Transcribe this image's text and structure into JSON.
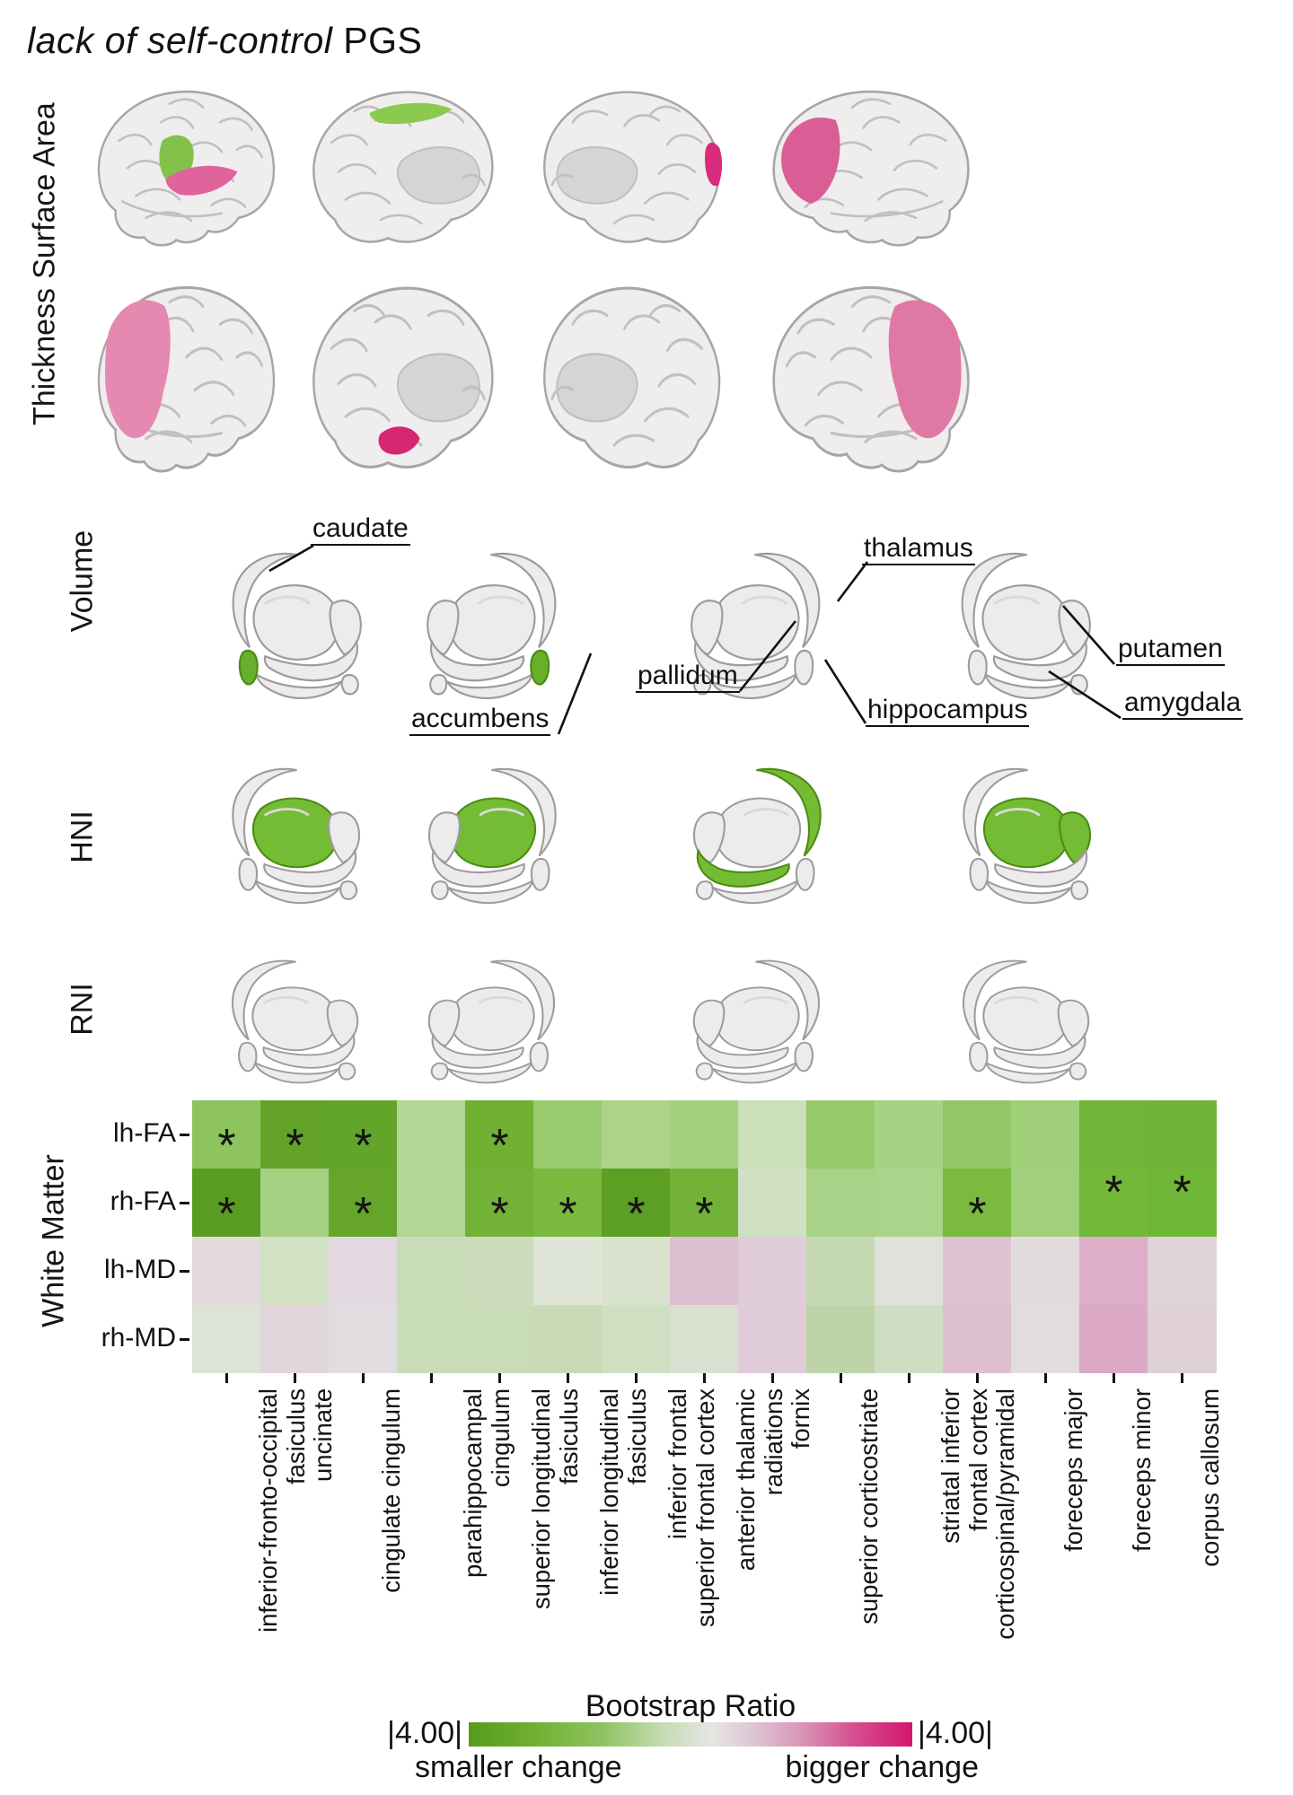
{
  "title": {
    "italic": "lack of self-control",
    "normal": " PGS"
  },
  "sections": {
    "surface_area": "Surface Area",
    "thickness": "Thickness",
    "volume": "Volume",
    "hni": "HNI",
    "rni": "RNI",
    "white_matter": "White Matter"
  },
  "volume_annotations": {
    "caudate": "caudate",
    "thalamus": "thalamus",
    "pallidum": "pallidum",
    "accumbens": "accumbens",
    "hippocampus": "hippocampus",
    "putamen": "putamen",
    "amygdala": "amygdala"
  },
  "patch_colors": {
    "sup_green": "#82c24a",
    "temp_pink": "#e0639b",
    "cing_green": "#8cc94f",
    "edge_pink": "#d92c7c",
    "post_pink": "#da5d96",
    "front_pink": "#e689b0",
    "orb_pink": "#d62670",
    "front_pink2": "#e078a5",
    "sub_green": "#74bc33",
    "accumbens_green": "#68b02b"
  },
  "brains": {
    "surface": [
      {
        "type": "lateral",
        "mirror": false,
        "patches": [
          "sup_green",
          "temp_pink"
        ],
        "green": []
      },
      {
        "type": "medial",
        "mirror": false,
        "patches": [
          "cing_green"
        ],
        "green": []
      },
      {
        "type": "medial",
        "mirror": true,
        "patches": [
          "edge_pink"
        ],
        "green": []
      },
      {
        "type": "lateral",
        "mirror": true,
        "patches": [
          "post_pink"
        ],
        "green": []
      }
    ],
    "thickness": [
      {
        "type": "lateral",
        "mirror": false,
        "patches": [
          "front_pink"
        ],
        "green": []
      },
      {
        "type": "medial",
        "mirror": false,
        "patches": [
          "orb_pink"
        ],
        "green": []
      },
      {
        "type": "medial",
        "mirror": true,
        "patches": [],
        "green": []
      },
      {
        "type": "lateral",
        "mirror": true,
        "patches": [
          "front_pink2"
        ],
        "green": []
      }
    ],
    "volume": [
      {
        "type": "sub",
        "mirror": false,
        "patches": [],
        "green": [
          "accumbens"
        ]
      },
      {
        "type": "sub",
        "mirror": true,
        "patches": [],
        "green": [
          "accumbens"
        ]
      },
      {
        "type": "sub",
        "mirror": true,
        "patches": [],
        "green": []
      },
      {
        "type": "sub",
        "mirror": false,
        "patches": [],
        "green": []
      }
    ],
    "hni": [
      {
        "type": "sub",
        "mirror": false,
        "patches": [],
        "green": [
          "thalamus"
        ]
      },
      {
        "type": "sub",
        "mirror": true,
        "patches": [],
        "green": [
          "thalamus"
        ]
      },
      {
        "type": "sub",
        "mirror": true,
        "patches": [],
        "green": [
          "caudate",
          "hippocampus"
        ]
      },
      {
        "type": "sub",
        "mirror": false,
        "patches": [],
        "green": [
          "thalamus",
          "putamen"
        ]
      }
    ],
    "rni": [
      {
        "type": "sub",
        "mirror": false,
        "patches": [],
        "green": []
      },
      {
        "type": "sub",
        "mirror": true,
        "patches": [],
        "green": []
      },
      {
        "type": "sub",
        "mirror": true,
        "patches": [],
        "green": []
      },
      {
        "type": "sub",
        "mirror": false,
        "patches": [],
        "green": []
      }
    ]
  },
  "chart_data": {
    "type": "heatmap",
    "title": "lack of self-control PGS — White Matter",
    "rows": [
      "lh-FA",
      "rh-FA",
      "lh-MD",
      "rh-MD"
    ],
    "columns": [
      "inferior-fronto-occipital fasiculus",
      "uncinate",
      "cingulate cingulum",
      "parahippocampal cingulum",
      "superior longitudinal fasiculus",
      "inferior longitudinal fasiculus",
      "inferior frontal superior frontal cortex",
      "anterior thalamic radiations",
      "fornix",
      "superior corticostriate",
      "striatal inferior frontal cortex",
      "corticospinal/pyramidal",
      "foreceps major",
      "foreceps minor",
      "corpus callosum"
    ],
    "col_label_lines": [
      [
        "inferior-fronto-occipital",
        "fasiculus"
      ],
      [
        "uncinate"
      ],
      [
        "cingulate cingulum"
      ],
      [
        "parahippocampal",
        "cingulum"
      ],
      [
        "superior longitudinal",
        "fasiculus"
      ],
      [
        "inferior longitudinal",
        "fasiculus"
      ],
      [
        "inferior frontal",
        "superior frontal cortex"
      ],
      [
        "anterior thalamic",
        "radiations"
      ],
      [
        "fornix"
      ],
      [
        "superior corticostriate"
      ],
      [
        "striatal inferior",
        "frontal cortex"
      ],
      [
        "corticospinal/pyramidal"
      ],
      [
        "foreceps major"
      ],
      [
        "foreceps minor"
      ],
      [
        "corpus callosum"
      ]
    ],
    "values": [
      [
        -2.2,
        -3.4,
        -3.4,
        -1.2,
        -2.9,
        -1.9,
        -1.5,
        -1.8,
        -0.6,
        -2.0,
        -1.6,
        -2.1,
        -1.8,
        -2.8,
        -2.8
      ],
      [
        -3.5,
        -1.6,
        -3.3,
        -1.2,
        -2.8,
        -2.7,
        -3.5,
        -2.8,
        -0.5,
        -1.6,
        -1.5,
        -2.7,
        -1.7,
        -2.8,
        -2.8
      ],
      [
        0.3,
        -0.7,
        0.4,
        -0.9,
        -0.9,
        -0.3,
        -0.5,
        0.9,
        0.6,
        -1.0,
        -0.1,
        0.9,
        0.2,
        1.5,
        0.4
      ],
      [
        -0.4,
        0.3,
        0.1,
        -0.9,
        -0.9,
        -0.9,
        -0.7,
        -0.4,
        0.6,
        -1.2,
        -0.6,
        1.0,
        0.2,
        1.6,
        0.5
      ]
    ],
    "cell_colors": [
      [
        "#8dc45e",
        "#62a328",
        "#63a42a",
        "#b2d694",
        "#70b033",
        "#99cb6f",
        "#abd489",
        "#a3d07e",
        "#cbe0ba",
        "#95c96a",
        "#a7d283",
        "#93c768",
        "#a0cf7a",
        "#70b537",
        "#6fb436"
      ],
      [
        "#5b9d23",
        "#a6d183",
        "#66a52c",
        "#b4d797",
        "#73b237",
        "#7ab93e",
        "#5d9e25",
        "#72b236",
        "#cfe0c3",
        "#a8d288",
        "#abd48b",
        "#7aba40",
        "#a1cf7c",
        "#73b839",
        "#71b737"
      ],
      [
        "#e3dade",
        "#d2e0c4",
        "#e3d8df",
        "#c9dcb8",
        "#cbddbb",
        "#dfe5d6",
        "#d8e2cd",
        "#ddc0d0",
        "#dfccd8",
        "#c5d9b3",
        "#dfe2da",
        "#dfc3d2",
        "#e2dbde",
        "#dcaec9",
        "#e0d3da"
      ],
      [
        "#dde3d6",
        "#e0d6dc",
        "#e0dcdf",
        "#c9dcb8",
        "#c9dcb8",
        "#c7dab5",
        "#cfdfc1",
        "#d8e1cf",
        "#e0ccd8",
        "#bcd4a7",
        "#cfdec2",
        "#ddbfcf",
        "#e1dcdd",
        "#dcaac7",
        "#e0d0d8"
      ]
    ],
    "significant": [
      [
        0,
        0
      ],
      [
        0,
        1
      ],
      [
        0,
        2
      ],
      [
        0,
        4
      ],
      [
        1,
        0
      ],
      [
        1,
        2
      ],
      [
        1,
        4
      ],
      [
        1,
        5
      ],
      [
        1,
        6
      ],
      [
        1,
        7
      ],
      [
        1,
        11
      ],
      [
        1,
        13
      ],
      [
        1,
        14
      ]
    ],
    "raised_asterisks": [
      [
        1,
        13
      ],
      [
        1,
        14
      ]
    ],
    "significance_marker": "*",
    "legend_position": "bottom",
    "grid": false
  },
  "legend": {
    "title": "Bootstrap Ratio",
    "left_value": "|4.00|",
    "right_value": "|4.00|",
    "left_label": "smaller change",
    "right_label": "bigger change",
    "green_end": "#569c1d",
    "pink_end": "#d3176d"
  }
}
